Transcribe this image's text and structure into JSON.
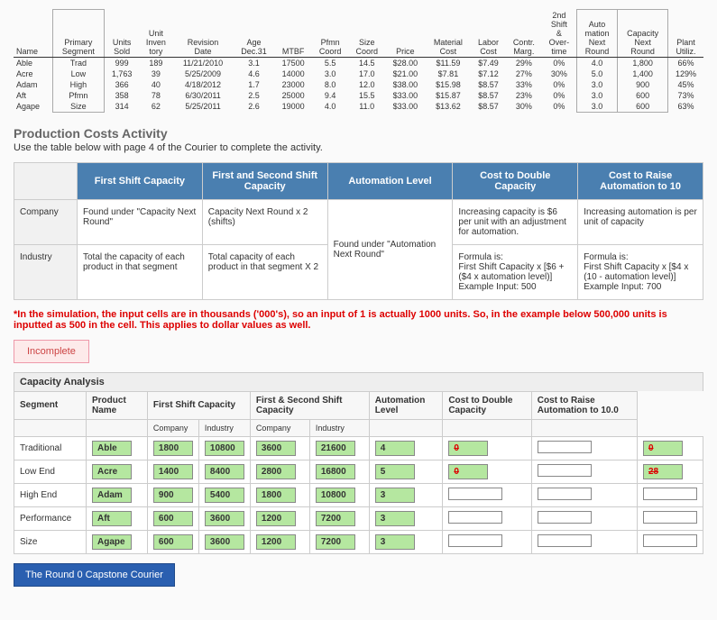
{
  "topTable": {
    "headers": [
      "Name",
      "Primary Segment",
      "Units Sold",
      "Unit Inven tory",
      "Revision Date",
      "Age Dec.31",
      "MTBF",
      "Pfmn Coord",
      "Size Coord",
      "Price",
      "Material Cost",
      "Labor Cost",
      "Contr. Marg.",
      "2nd Shift & Over- time",
      "Auto mation Next Round",
      "Capacity Next Round",
      "Plant Utiliz."
    ],
    "rows": [
      [
        "Able",
        "Trad",
        "999",
        "189",
        "11/21/2010",
        "3.1",
        "17500",
        "5.5",
        "14.5",
        "$28.00",
        "$11.59",
        "$7.49",
        "29%",
        "0%",
        "4.0",
        "1,800",
        "66%"
      ],
      [
        "Acre",
        "Low",
        "1,763",
        "39",
        "5/25/2009",
        "4.6",
        "14000",
        "3.0",
        "17.0",
        "$21.00",
        "$7.81",
        "$7.12",
        "27%",
        "30%",
        "5.0",
        "1,400",
        "129%"
      ],
      [
        "Adam",
        "High",
        "366",
        "40",
        "4/18/2012",
        "1.7",
        "23000",
        "8.0",
        "12.0",
        "$38.00",
        "$15.98",
        "$8.57",
        "33%",
        "0%",
        "3.0",
        "900",
        "45%"
      ],
      [
        "Aft",
        "Pfmn",
        "358",
        "78",
        "6/30/2011",
        "2.5",
        "25000",
        "9.4",
        "15.5",
        "$33.00",
        "$15.87",
        "$8.57",
        "23%",
        "0%",
        "3.0",
        "600",
        "73%"
      ],
      [
        "Agape",
        "Size",
        "314",
        "62",
        "5/25/2011",
        "2.6",
        "19000",
        "4.0",
        "11.0",
        "$33.00",
        "$13.62",
        "$8.57",
        "30%",
        "0%",
        "3.0",
        "600",
        "63%"
      ]
    ]
  },
  "activity": {
    "title": "Production Costs Activity",
    "sub": "Use the table below with page 4 of the Courier to complete the activity."
  },
  "guide": {
    "headers": [
      "",
      "First Shift Capacity",
      "First and Second Shift Capacity",
      "Automation Level",
      "Cost to Double Capacity",
      "Cost to Raise Automation to 10"
    ],
    "rows": [
      {
        "lbl": "Company",
        "cells": [
          "Found under \"Capacity Next Round\"",
          "Capacity Next Round x 2 (shifts)",
          "",
          "Increasing capacity is $6 per unit with an adjustment for automation.",
          "Increasing automation is per unit of capacity"
        ]
      },
      {
        "lbl": "Industry",
        "cells": [
          "Total the capacity of each product in that segment",
          "Total capacity of each product in that segment X 2",
          "",
          "Formula is:\nFirst Shift Capacity x [$6 + ($4 x automation level)]\nExample Input: 500",
          "Formula is:\nFirst Shift Capacity x [$4 x (10 - automation level)]\nExample Input: 700"
        ]
      }
    ],
    "autoMerged": "Found under \"Automation Next Round\""
  },
  "note": "*In the simulation, the input cells are in thousands ('000's), so an input of 1 is actually 1000 units. So, in the example below 500,000 units is inputted as 500 in the cell. This applies to dollar values as well.",
  "statusLabel": "Incomplete",
  "capTitle": "Capacity Analysis",
  "capHeaders": {
    "top": [
      "Segment",
      "Product Name",
      "First Shift Capacity",
      "",
      "First & Second Shift Capacity",
      "",
      "Automation Level",
      "Cost to Double Capacity",
      "Cost to Raise Automation to 10.0"
    ],
    "sub": [
      "",
      "",
      "Company",
      "Industry",
      "Company",
      "Industry",
      "",
      "",
      ""
    ]
  },
  "capRows": [
    {
      "seg": "Traditional",
      "prod": "Able",
      "cells": [
        "1800",
        "10800",
        "3600",
        "21600",
        "4",
        "0",
        "",
        "0"
      ],
      "cls": [
        "green",
        "green",
        "green",
        "green",
        "green",
        "red",
        "empty",
        "red"
      ]
    },
    {
      "seg": "Low End",
      "prod": "Acre",
      "cells": [
        "1400",
        "8400",
        "2800",
        "16800",
        "5",
        "0",
        "",
        "28"
      ],
      "cls": [
        "green",
        "green",
        "green",
        "green",
        "green",
        "red",
        "empty",
        "red"
      ]
    },
    {
      "seg": "High End",
      "prod": "Adam",
      "cells": [
        "900",
        "5400",
        "1800",
        "10800",
        "3",
        "",
        "",
        ""
      ],
      "cls": [
        "green",
        "green",
        "green",
        "green",
        "green",
        "empty",
        "empty",
        "empty"
      ]
    },
    {
      "seg": "Performance",
      "prod": "Aft",
      "cells": [
        "600",
        "3600",
        "1200",
        "7200",
        "3",
        "",
        "",
        ""
      ],
      "cls": [
        "green",
        "green",
        "green",
        "green",
        "green",
        "empty",
        "empty",
        "empty"
      ]
    },
    {
      "seg": "Size",
      "prod": "Agape",
      "cells": [
        "600",
        "3600",
        "1200",
        "7200",
        "3",
        "",
        "",
        ""
      ],
      "cls": [
        "green",
        "green",
        "green",
        "green",
        "green",
        "empty",
        "empty",
        "empty"
      ]
    }
  ],
  "courierBtn": "The Round 0 Capstone Courier"
}
